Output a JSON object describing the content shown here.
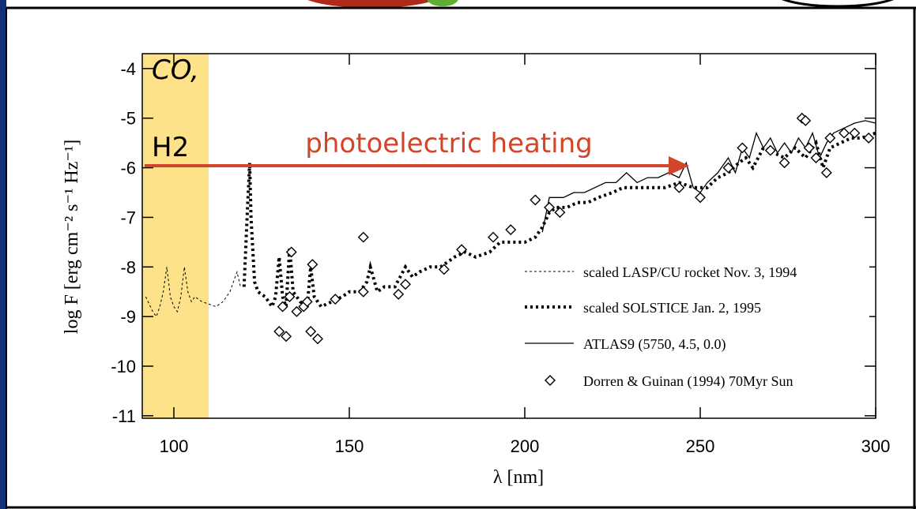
{
  "chart_data": {
    "type": "line",
    "xlabel": "λ [nm]",
    "ylabel": "log F [erg cm⁻² s⁻¹ Hz⁻¹]",
    "annotations": [
      "CO,",
      "H2",
      "photoelectric heating"
    ],
    "xlim": [
      91,
      300
    ],
    "ylim": [
      -11.05,
      -3.7
    ],
    "xticks": [
      100,
      150,
      200,
      250,
      300
    ],
    "yticks": [
      -4,
      -5,
      -6,
      -7,
      -8,
      -9,
      -10,
      -11
    ],
    "legend": "lower right",
    "series": [
      {
        "name": "scaled LASP/CU rocket Nov. 3, 1994",
        "color": "#000000",
        "style": "thin-dashed",
        "x": [
          92,
          94,
          95,
          96,
          97,
          98,
          99,
          100,
          101,
          102,
          103,
          104,
          105,
          106,
          108,
          110,
          112,
          114,
          116,
          117,
          118,
          119
        ],
        "values": [
          -8.6,
          -8.9,
          -9.0,
          -8.8,
          -8.5,
          -8.0,
          -8.6,
          -8.8,
          -8.9,
          -8.6,
          -8.0,
          -8.5,
          -8.7,
          -8.6,
          -8.7,
          -8.75,
          -8.8,
          -8.7,
          -8.5,
          -8.3,
          -8.1,
          -8.4
        ]
      },
      {
        "name": "scaled SOLSTICE Jan. 2, 1995",
        "color": "#000000",
        "style": "thick-dotted",
        "x": [
          120,
          121,
          121.6,
          122,
          123,
          124,
          126,
          128,
          129,
          130,
          131,
          132,
          133,
          134,
          136,
          138,
          139,
          140,
          142,
          145,
          148,
          150,
          153,
          155,
          156,
          158,
          160,
          163,
          166,
          168,
          170,
          173,
          176,
          180,
          183,
          186,
          190,
          193,
          196,
          200,
          203,
          205,
          207,
          209,
          212,
          215,
          218,
          221,
          225,
          228,
          232,
          236,
          240,
          244,
          248,
          252,
          255,
          258,
          261,
          263,
          265,
          268,
          271,
          274,
          277,
          280,
          283,
          285,
          287,
          290,
          293,
          296,
          300
        ],
        "values": [
          -8.4,
          -6.8,
          -5.9,
          -7.0,
          -8.3,
          -8.5,
          -8.6,
          -8.8,
          -8.6,
          -7.8,
          -8.6,
          -8.8,
          -7.6,
          -8.5,
          -8.7,
          -8.8,
          -8.0,
          -8.6,
          -8.8,
          -8.7,
          -8.6,
          -8.5,
          -8.5,
          -8.3,
          -8.0,
          -8.5,
          -8.4,
          -8.4,
          -8.0,
          -8.2,
          -8.1,
          -8.0,
          -8.0,
          -7.8,
          -7.7,
          -7.8,
          -7.7,
          -7.5,
          -7.5,
          -7.5,
          -7.4,
          -7.2,
          -6.9,
          -6.8,
          -6.8,
          -6.7,
          -6.7,
          -6.6,
          -6.5,
          -6.4,
          -6.4,
          -6.4,
          -6.4,
          -6.3,
          -6.4,
          -6.4,
          -6.2,
          -6.1,
          -5.9,
          -5.8,
          -6.0,
          -5.6,
          -5.7,
          -5.8,
          -5.6,
          -5.8,
          -5.5,
          -6.0,
          -5.6,
          -5.5,
          -5.4,
          -5.4,
          -5.3
        ]
      },
      {
        "name": "ATLAS9 (5750, 4.5, 0.0)",
        "color": "#000000",
        "style": "solid",
        "x": [
          205,
          207,
          209,
          211,
          214,
          217,
          220,
          223,
          226,
          229,
          232,
          235,
          238,
          241,
          244,
          246,
          248,
          250,
          252,
          255,
          258,
          260,
          262,
          264,
          266,
          268,
          270,
          272,
          274,
          276,
          278,
          280,
          282,
          284,
          286,
          288,
          291,
          294,
          297,
          300
        ],
        "values": [
          -7.3,
          -6.6,
          -6.6,
          -6.6,
          -6.5,
          -6.5,
          -6.4,
          -6.3,
          -6.3,
          -6.1,
          -6.3,
          -6.2,
          -6.2,
          -6.1,
          -6.2,
          -5.9,
          -6.4,
          -6.5,
          -6.3,
          -6.1,
          -5.8,
          -6.1,
          -5.6,
          -5.8,
          -5.3,
          -5.6,
          -5.4,
          -5.7,
          -5.5,
          -5.7,
          -5.4,
          -5.6,
          -5.3,
          -5.8,
          -5.5,
          -5.3,
          -5.2,
          -5.1,
          -5.05,
          -5.1
        ]
      },
      {
        "name": "Dorren & Guinan (1994) 70Myr Sun",
        "color": "#000000",
        "style": "markers",
        "x": [
          130,
          131,
          132,
          133,
          133.5,
          135,
          137,
          138,
          139,
          139.5,
          141,
          146,
          154,
          154,
          164,
          166,
          177,
          182,
          191,
          196,
          203,
          207,
          210,
          244,
          250,
          258,
          262,
          270,
          274,
          279,
          280,
          281,
          283,
          286,
          287,
          291,
          294,
          298
        ],
        "values": [
          -9.3,
          -8.8,
          -9.4,
          -8.6,
          -7.7,
          -8.9,
          -8.8,
          -8.7,
          -9.3,
          -7.95,
          -9.45,
          -8.65,
          -7.4,
          -8.5,
          -8.55,
          -8.35,
          -8.05,
          -7.65,
          -7.4,
          -7.25,
          -6.65,
          -6.8,
          -6.9,
          -6.4,
          -6.6,
          -6.0,
          -5.6,
          -5.65,
          -5.9,
          -5.0,
          -5.05,
          -5.6,
          -5.8,
          -6.1,
          -5.4,
          -5.3,
          -5.3,
          -5.4
        ]
      }
    ]
  }
}
